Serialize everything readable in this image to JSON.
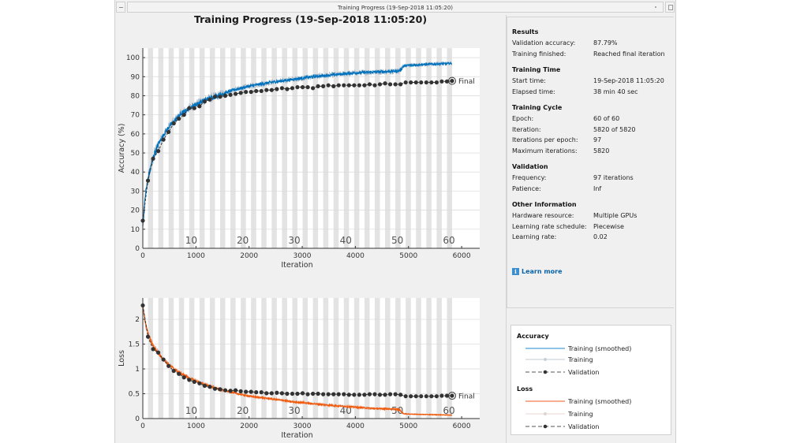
{
  "window": {
    "title": "Training Progress (19-Sep-2018 11:05:20)"
  },
  "main_title": "Training Progress (19-Sep-2018 11:05:20)",
  "info": {
    "sections": [
      {
        "heading": "Results",
        "rows": [
          {
            "label": "Validation accuracy:",
            "value": "87.79%"
          },
          {
            "label": "Training finished:",
            "value": "Reached final iteration"
          }
        ]
      },
      {
        "heading": "Training Time",
        "rows": [
          {
            "label": "Start time:",
            "value": "19-Sep-2018 11:05:20"
          },
          {
            "label": "Elapsed time:",
            "value": "38 min 40 sec"
          }
        ]
      },
      {
        "heading": "Training Cycle",
        "rows": [
          {
            "label": "Epoch:",
            "value": "60 of 60"
          },
          {
            "label": "Iteration:",
            "value": "5820 of 5820"
          },
          {
            "label": "Iterations per epoch:",
            "value": "97"
          },
          {
            "label": "Maximum iterations:",
            "value": "5820"
          }
        ]
      },
      {
        "heading": "Validation",
        "rows": [
          {
            "label": "Frequency:",
            "value": "97 iterations"
          },
          {
            "label": "Patience:",
            "value": "Inf"
          }
        ]
      },
      {
        "heading": "Other Information",
        "rows": [
          {
            "label": "Hardware resource:",
            "value": "Multiple GPUs"
          },
          {
            "label": "Learning rate schedule:",
            "value": "Piecewise"
          },
          {
            "label": "Learning rate:",
            "value": "0.02"
          }
        ]
      }
    ],
    "learn_more": "Learn more",
    "learn_more_icon": "info-icon"
  },
  "legend": {
    "accuracy_heading": "Accuracy",
    "loss_heading": "Loss",
    "items": {
      "smoothed": "Training (smoothed)",
      "training": "Training",
      "validation": "Validation"
    }
  },
  "colors": {
    "accuracy_smoothed": "#0072bd",
    "accuracy_raw": "#b8c4cf",
    "loss_smoothed": "#f25a0a",
    "loss_raw": "#e6c8c0",
    "validation": "#333333",
    "epoch_band": "#e3e3e3"
  },
  "chart_data": [
    {
      "type": "line",
      "title": "Accuracy",
      "xlabel": "Iteration",
      "ylabel": "Accuracy (%)",
      "xlim": [
        0,
        6340
      ],
      "ylim": [
        0,
        105
      ],
      "xticks": [
        0,
        1000,
        2000,
        3000,
        4000,
        5000,
        6000
      ],
      "yticks": [
        0,
        10,
        20,
        30,
        40,
        50,
        60,
        70,
        80,
        90,
        100
      ],
      "grid": true,
      "epochs_per_label": 10,
      "iterations_per_epoch": 97,
      "epoch_labels": [
        "10",
        "20",
        "30",
        "40",
        "50",
        "60"
      ],
      "final_label": "Final",
      "series": [
        {
          "name": "Training (smoothed)",
          "x": [
            0,
            50,
            100,
            200,
            300,
            400,
            500,
            700,
            900,
            1100,
            1400,
            1700,
            2000,
            2400,
            2800,
            3200,
            3600,
            4000,
            4400,
            4800,
            4850,
            4900,
            5000,
            5400,
            5820
          ],
          "y": [
            12,
            28,
            37,
            48,
            55,
            60,
            64,
            70,
            74,
            77,
            80,
            83,
            85,
            87,
            88.5,
            90,
            91,
            92,
            92.5,
            93,
            93.5,
            95.5,
            96,
            96.5,
            97
          ]
        },
        {
          "name": "Validation",
          "x": [
            0,
            97,
            194,
            291,
            388,
            485,
            582,
            679,
            776,
            873,
            970,
            1067,
            1164,
            1261,
            1358,
            1455,
            1552,
            1649,
            1746,
            1843,
            1940,
            2037,
            2134,
            2231,
            2328,
            2425,
            2522,
            2619,
            2716,
            2813,
            2910,
            3007,
            3104,
            3201,
            3298,
            3395,
            3492,
            3589,
            3686,
            3783,
            3880,
            3977,
            4074,
            4171,
            4268,
            4365,
            4462,
            4559,
            4656,
            4753,
            4850,
            4947,
            5044,
            5141,
            5238,
            5335,
            5432,
            5529,
            5626,
            5723,
            5820
          ],
          "y": [
            14.5,
            35.5,
            47,
            51,
            57,
            61,
            65.5,
            68,
            70,
            73.5,
            73.5,
            74.5,
            77,
            78,
            79.5,
            79.5,
            80,
            80.5,
            81,
            81.5,
            82,
            82,
            82.5,
            82.5,
            83,
            83,
            83.5,
            84,
            83.5,
            84,
            84.5,
            84.5,
            84.5,
            84,
            85,
            85,
            85.5,
            85,
            85.5,
            85.5,
            85.5,
            85.5,
            85.5,
            85.5,
            86,
            85.5,
            86,
            86.5,
            86,
            86,
            86,
            87,
            87,
            87,
            87,
            87,
            87,
            87,
            87.5,
            87.5,
            87.79
          ]
        }
      ]
    },
    {
      "type": "line",
      "title": "Loss",
      "xlabel": "Iteration",
      "ylabel": "Loss",
      "xlim": [
        0,
        6340
      ],
      "ylim": [
        0,
        2.43
      ],
      "xticks": [
        0,
        1000,
        2000,
        3000,
        4000,
        5000,
        6000
      ],
      "yticks": [
        0,
        0.5,
        1,
        1.5,
        2
      ],
      "ytick_labels": [
        "0",
        "0.5",
        "1",
        "1.5",
        "2"
      ],
      "grid": true,
      "iterations_per_epoch": 97,
      "epoch_labels": [
        "10",
        "20",
        "30",
        "40",
        "50",
        "60"
      ],
      "final_label": "Final",
      "series": [
        {
          "name": "Training (smoothed)",
          "x": [
            0,
            50,
            100,
            200,
            300,
            400,
            500,
            700,
            900,
            1100,
            1400,
            1700,
            2000,
            2400,
            2800,
            3200,
            3600,
            4000,
            4400,
            4800,
            4850,
            4900,
            5000,
            5400,
            5820
          ],
          "y": [
            2.3,
            1.9,
            1.7,
            1.45,
            1.3,
            1.18,
            1.07,
            0.92,
            0.8,
            0.71,
            0.6,
            0.52,
            0.45,
            0.4,
            0.34,
            0.3,
            0.26,
            0.23,
            0.2,
            0.19,
            0.16,
            0.1,
            0.09,
            0.08,
            0.07
          ]
        },
        {
          "name": "Validation",
          "x": [
            0,
            97,
            194,
            291,
            388,
            485,
            582,
            679,
            776,
            873,
            970,
            1067,
            1164,
            1261,
            1358,
            1455,
            1552,
            1649,
            1746,
            1843,
            1940,
            2037,
            2134,
            2231,
            2328,
            2425,
            2522,
            2619,
            2716,
            2813,
            2910,
            3007,
            3104,
            3201,
            3298,
            3395,
            3492,
            3589,
            3686,
            3783,
            3880,
            3977,
            4074,
            4171,
            4268,
            4365,
            4462,
            4559,
            4656,
            4753,
            4850,
            4947,
            5044,
            5141,
            5238,
            5335,
            5432,
            5529,
            5626,
            5723,
            5820
          ],
          "y": [
            2.28,
            1.65,
            1.4,
            1.33,
            1.19,
            1.06,
            0.96,
            0.9,
            0.83,
            0.78,
            0.74,
            0.71,
            0.66,
            0.64,
            0.6,
            0.59,
            0.57,
            0.56,
            0.57,
            0.55,
            0.54,
            0.54,
            0.53,
            0.53,
            0.51,
            0.51,
            0.52,
            0.51,
            0.5,
            0.5,
            0.5,
            0.51,
            0.49,
            0.5,
            0.5,
            0.49,
            0.49,
            0.49,
            0.49,
            0.49,
            0.48,
            0.48,
            0.48,
            0.48,
            0.49,
            0.49,
            0.48,
            0.48,
            0.49,
            0.49,
            0.48,
            0.45,
            0.45,
            0.45,
            0.45,
            0.45,
            0.45,
            0.45,
            0.46,
            0.46,
            0.46
          ]
        }
      ]
    }
  ]
}
